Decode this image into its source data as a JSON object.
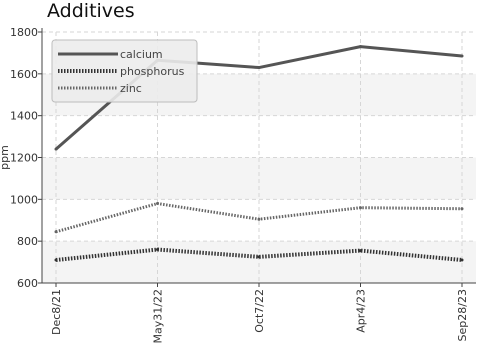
{
  "chart_data": {
    "type": "line",
    "title": "Additives",
    "xlabel": "",
    "ylabel": "ppm",
    "x": [
      "Dec8/21",
      "May31/22",
      "Oct7/22",
      "Apr4/23",
      "Sep28/23"
    ],
    "ylim": [
      600,
      1800
    ],
    "yticks": [
      600,
      800,
      1000,
      1200,
      1400,
      1600,
      1800
    ],
    "grid": true,
    "legend_position": "top-left",
    "series": [
      {
        "name": "calcium",
        "values": [
          1240,
          1665,
          1630,
          1730,
          1685
        ],
        "color": "#555555",
        "style": "solid"
      },
      {
        "name": "phosphorus",
        "values": [
          710,
          760,
          725,
          755,
          710
        ],
        "color": "#333333",
        "style": "dotted-thick"
      },
      {
        "name": "zinc",
        "values": [
          845,
          980,
          905,
          960,
          955
        ],
        "color": "#666666",
        "style": "dotted"
      }
    ]
  }
}
